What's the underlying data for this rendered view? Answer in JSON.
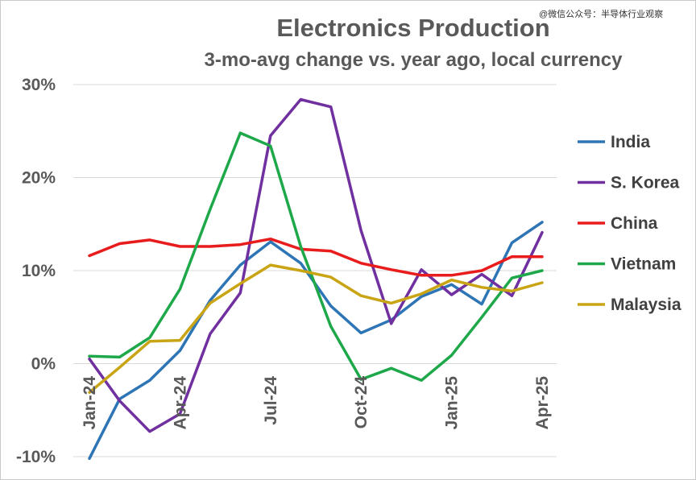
{
  "watermark": "@微信公众号：半导体行业观察",
  "chart_data": {
    "type": "line",
    "title": "Electronics Production",
    "subtitle": "3-mo-avg change vs. year ago, local currency",
    "xlabel": "",
    "ylabel": "",
    "x": [
      "Jan-24",
      "Feb-24",
      "Mar-24",
      "Apr-24",
      "May-24",
      "Jun-24",
      "Jul-24",
      "Aug-24",
      "Sep-24",
      "Oct-24",
      "Nov-24",
      "Dec-24",
      "Jan-25",
      "Feb-25",
      "Mar-25",
      "Apr-25"
    ],
    "x_tick_labels": [
      "Jan-24",
      "Apr-24",
      "Jul-24",
      "Oct-24",
      "Jan-25",
      "Apr-25"
    ],
    "y_tick_labels": [
      "30%",
      "20%",
      "10%",
      "0%",
      "-10%"
    ],
    "ylim": [
      -10,
      30
    ],
    "grid": true,
    "legend_position": "right",
    "series": [
      {
        "name": "India",
        "color": "#2e75b6",
        "values": [
          -10.2,
          -3.8,
          -1.8,
          1.4,
          6.8,
          10.6,
          13.1,
          10.8,
          6.2,
          3.3,
          4.7,
          7.2,
          8.5,
          6.4,
          13.0,
          15.2
        ]
      },
      {
        "name": "S. Korea",
        "color": "#7030a0",
        "values": [
          0.5,
          -4.0,
          -7.3,
          -5.4,
          3.2,
          7.6,
          24.5,
          28.4,
          27.6,
          14.3,
          4.3,
          10.1,
          7.4,
          9.6,
          7.3,
          14.1
        ]
      },
      {
        "name": "China",
        "color": "#e81c1c",
        "values": [
          11.6,
          12.9,
          13.3,
          12.6,
          12.6,
          12.8,
          13.4,
          12.3,
          12.1,
          10.8,
          10.1,
          9.5,
          9.5,
          10.0,
          11.5,
          11.5
        ]
      },
      {
        "name": "Vietnam",
        "color": "#1ea84a",
        "values": [
          0.8,
          0.7,
          2.8,
          8.0,
          16.6,
          24.8,
          23.4,
          12.6,
          4.0,
          -1.7,
          -0.5,
          -1.8,
          0.9,
          5.0,
          9.2,
          10.0
        ]
      },
      {
        "name": "Malaysia",
        "color": "#c9a415",
        "values": [
          -3.1,
          -0.4,
          2.4,
          2.5,
          6.5,
          8.6,
          10.6,
          10.0,
          9.3,
          7.3,
          6.5,
          7.5,
          9.0,
          8.2,
          7.8,
          8.7
        ]
      }
    ]
  }
}
